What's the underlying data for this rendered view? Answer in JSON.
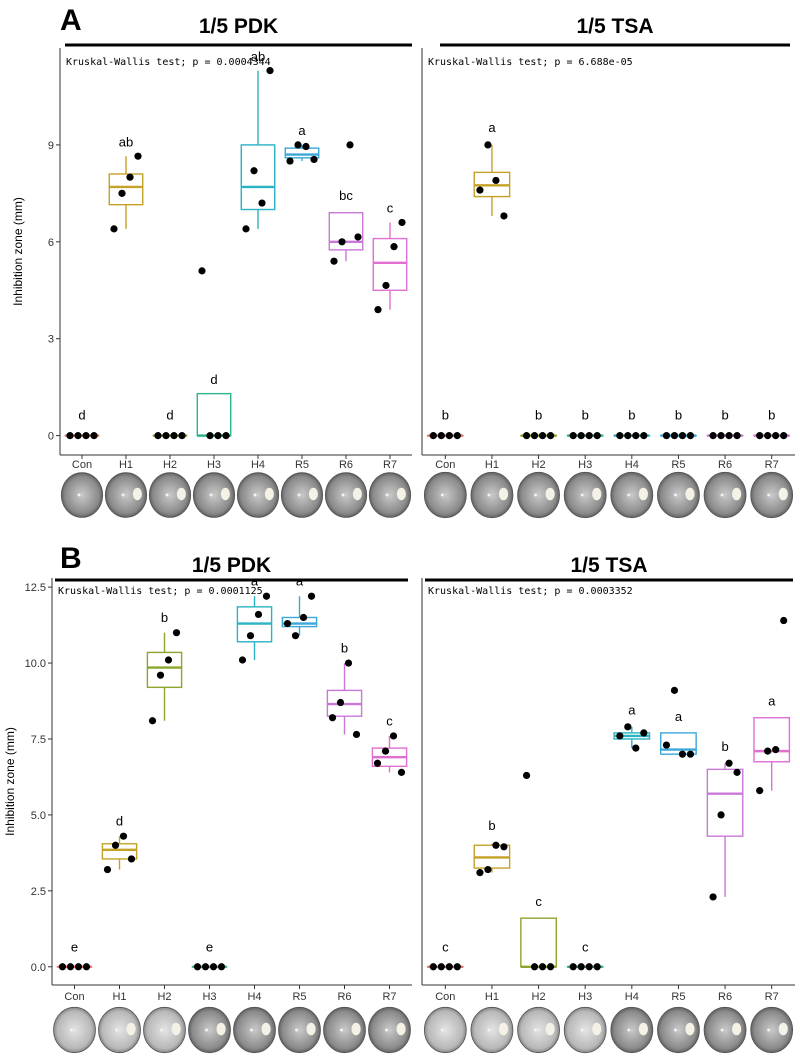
{
  "colors": {
    "Con": "#e8736a",
    "H1": "#c5a227",
    "H2": "#8aa62b",
    "H3": "#2bb58f",
    "H4": "#2ab3c4",
    "R5": "#3aa7d8",
    "R6": "#c978d8",
    "R7": "#e06fd1"
  },
  "chart_data": [
    {
      "type": "box",
      "panel": "A",
      "title": "1/5 PDK",
      "test": "Kruskal-Wallis test; p = 0.0004344",
      "ylabel": "Inhibition zone (mm)",
      "ylim": [
        -0.6,
        12
      ],
      "yticks": [
        0,
        3,
        6,
        9
      ],
      "categories": [
        "Con",
        "H1",
        "H2",
        "H3",
        "H4",
        "R5",
        "R6",
        "R7"
      ],
      "boxes": [
        {
          "q1": 0,
          "med": 0,
          "q3": 0,
          "lo": 0,
          "hi": 0
        },
        {
          "q1": 7.15,
          "med": 7.7,
          "q3": 8.1,
          "lo": 6.4,
          "hi": 8.65
        },
        {
          "q1": 0,
          "med": 0,
          "q3": 0,
          "lo": 0,
          "hi": 0
        },
        {
          "q1": 0,
          "med": 0,
          "q3": 1.3,
          "lo": 0,
          "hi": 1.3
        },
        {
          "q1": 7.0,
          "med": 7.7,
          "q3": 9.0,
          "lo": 6.4,
          "hi": 11.3
        },
        {
          "q1": 8.6,
          "med": 8.7,
          "q3": 8.9,
          "lo": 8.5,
          "hi": 9.0
        },
        {
          "q1": 5.75,
          "med": 6.0,
          "q3": 6.9,
          "lo": 5.4,
          "hi": 6.9
        },
        {
          "q1": 4.5,
          "med": 5.35,
          "q3": 6.1,
          "lo": 3.9,
          "hi": 6.6
        }
      ],
      "points": [
        [
          [
            0,
            0
          ],
          [
            0,
            0
          ],
          [
            0,
            0
          ],
          [
            0,
            0
          ]
        ],
        [
          [
            0,
            6.4
          ],
          [
            0,
            7.5
          ],
          [
            0,
            8.0
          ],
          [
            0,
            8.65
          ]
        ],
        [
          [
            0,
            0
          ],
          [
            0,
            0
          ],
          [
            0,
            0
          ],
          [
            0,
            0
          ]
        ],
        [
          [
            0,
            5.1
          ],
          [
            0,
            0
          ],
          [
            0,
            0
          ],
          [
            0,
            0
          ]
        ],
        [
          [
            0,
            6.4
          ],
          [
            0,
            8.2
          ],
          [
            0,
            7.2
          ],
          [
            0,
            11.3
          ]
        ],
        [
          [
            0,
            8.5
          ],
          [
            0,
            9.0
          ],
          [
            0,
            8.95
          ],
          [
            0,
            8.55
          ]
        ],
        [
          [
            0,
            5.4
          ],
          [
            0,
            6.0
          ],
          [
            0,
            9.0
          ],
          [
            0,
            6.15
          ]
        ],
        [
          [
            0,
            3.9
          ],
          [
            0,
            4.65
          ],
          [
            0,
            5.85
          ],
          [
            0,
            6.6
          ]
        ]
      ],
      "letters": [
        "d",
        "ab",
        "d",
        "d",
        "ab",
        "a",
        "bc",
        "c"
      ],
      "letter_y": [
        0.5,
        8.95,
        0.5,
        1.6,
        11.6,
        9.3,
        7.3,
        6.9
      ]
    },
    {
      "type": "box",
      "panel": "A",
      "title": "1/5 TSA",
      "test": "Kruskal-Wallis test; p = 6.688e-05",
      "ylabel": "",
      "ylim": [
        -0.6,
        12
      ],
      "yticks": [],
      "categories": [
        "Con",
        "H1",
        "H2",
        "H3",
        "H4",
        "R5",
        "R6",
        "R7"
      ],
      "boxes": [
        {
          "q1": 0,
          "med": 0,
          "q3": 0,
          "lo": 0,
          "hi": 0
        },
        {
          "q1": 7.4,
          "med": 7.75,
          "q3": 8.15,
          "lo": 6.8,
          "hi": 9.0
        },
        {
          "q1": 0,
          "med": 0,
          "q3": 0,
          "lo": 0,
          "hi": 0
        },
        {
          "q1": 0,
          "med": 0,
          "q3": 0,
          "lo": 0,
          "hi": 0
        },
        {
          "q1": 0,
          "med": 0,
          "q3": 0,
          "lo": 0,
          "hi": 0
        },
        {
          "q1": 0,
          "med": 0,
          "q3": 0,
          "lo": 0,
          "hi": 0
        },
        {
          "q1": 0,
          "med": 0,
          "q3": 0,
          "lo": 0,
          "hi": 0
        },
        {
          "q1": 0,
          "med": 0,
          "q3": 0,
          "lo": 0,
          "hi": 0
        }
      ],
      "points": [
        [
          [
            0,
            0
          ],
          [
            0,
            0
          ],
          [
            0,
            0
          ],
          [
            0,
            0
          ]
        ],
        [
          [
            0,
            7.6
          ],
          [
            0,
            9.0
          ],
          [
            0,
            7.9
          ],
          [
            0,
            6.8
          ]
        ],
        [
          [
            0,
            0
          ],
          [
            0,
            0
          ],
          [
            0,
            0
          ],
          [
            0,
            0
          ]
        ],
        [
          [
            0,
            0
          ],
          [
            0,
            0
          ],
          [
            0,
            0
          ],
          [
            0,
            0
          ]
        ],
        [
          [
            0,
            0
          ],
          [
            0,
            0
          ],
          [
            0,
            0
          ],
          [
            0,
            0
          ]
        ],
        [
          [
            0,
            0
          ],
          [
            0,
            0
          ],
          [
            0,
            0
          ],
          [
            0,
            0
          ]
        ],
        [
          [
            0,
            0
          ],
          [
            0,
            0
          ],
          [
            0,
            0
          ],
          [
            0,
            0
          ]
        ],
        [
          [
            0,
            0
          ],
          [
            0,
            0
          ],
          [
            0,
            0
          ],
          [
            0,
            0
          ]
        ]
      ],
      "letters": [
        "b",
        "a",
        "b",
        "b",
        "b",
        "b",
        "b",
        "b"
      ],
      "letter_y": [
        0.5,
        9.4,
        0.5,
        0.5,
        0.5,
        0.5,
        0.5,
        0.5
      ]
    },
    {
      "type": "box",
      "panel": "B",
      "title": "1/5 PDK",
      "test": "Kruskal-Wallis test; p = 0.0001125",
      "ylabel": "Inhibition zone (mm)",
      "ylim": [
        -0.6,
        12.8
      ],
      "yticks": [
        0,
        2.5,
        5,
        7.5,
        10,
        12.5
      ],
      "ytick_labels": [
        "0.0",
        "2.5",
        "5.0",
        "7.5",
        "10.0",
        "12.5"
      ],
      "categories": [
        "Con",
        "H1",
        "H2",
        "H3",
        "H4",
        "R5",
        "R6",
        "R7"
      ],
      "boxes": [
        {
          "q1": 0,
          "med": 0,
          "q3": 0,
          "lo": 0,
          "hi": 0
        },
        {
          "q1": 3.55,
          "med": 3.85,
          "q3": 4.05,
          "lo": 3.2,
          "hi": 4.3
        },
        {
          "q1": 9.2,
          "med": 9.85,
          "q3": 10.35,
          "lo": 8.1,
          "hi": 11.0
        },
        {
          "q1": 0,
          "med": 0,
          "q3": 0,
          "lo": 0,
          "hi": 0
        },
        {
          "q1": 10.7,
          "med": 11.3,
          "q3": 11.85,
          "lo": 10.1,
          "hi": 12.2
        },
        {
          "q1": 11.2,
          "med": 11.3,
          "q3": 11.5,
          "lo": 10.9,
          "hi": 12.2
        },
        {
          "q1": 8.25,
          "med": 8.65,
          "q3": 9.1,
          "lo": 7.65,
          "hi": 10.0
        },
        {
          "q1": 6.6,
          "med": 6.9,
          "q3": 7.2,
          "lo": 6.4,
          "hi": 7.6
        }
      ],
      "points": [
        [
          [
            0,
            0
          ],
          [
            0,
            0
          ],
          [
            0,
            0
          ],
          [
            0,
            0
          ]
        ],
        [
          [
            0,
            3.2
          ],
          [
            0,
            4.0
          ],
          [
            0,
            4.3
          ],
          [
            0,
            3.55
          ]
        ],
        [
          [
            0,
            8.1
          ],
          [
            0,
            9.6
          ],
          [
            0,
            10.1
          ],
          [
            0,
            11.0
          ]
        ],
        [
          [
            0,
            0
          ],
          [
            0,
            0
          ],
          [
            0,
            0
          ],
          [
            0,
            0
          ]
        ],
        [
          [
            0,
            10.1
          ],
          [
            0,
            10.9
          ],
          [
            0,
            11.6
          ],
          [
            0,
            12.2
          ]
        ],
        [
          [
            0,
            11.3
          ],
          [
            0,
            10.9
          ],
          [
            0,
            11.5
          ],
          [
            0,
            12.2
          ]
        ],
        [
          [
            0,
            8.2
          ],
          [
            0,
            8.7
          ],
          [
            0,
            10.0
          ],
          [
            0,
            7.65
          ]
        ],
        [
          [
            0,
            6.7
          ],
          [
            0,
            7.1
          ],
          [
            0,
            7.6
          ],
          [
            0,
            6.4
          ]
        ]
      ],
      "letters": [
        "e",
        "d",
        "b",
        "e",
        "a",
        "a",
        "b",
        "c"
      ],
      "letter_y": [
        0.5,
        4.65,
        11.35,
        0.5,
        12.55,
        12.55,
        10.35,
        7.95
      ]
    },
    {
      "type": "box",
      "panel": "B",
      "title": "1/5 TSA",
      "test": "Kruskal-Wallis test; p = 0.0003352",
      "ylabel": "",
      "ylim": [
        -0.6,
        12.8
      ],
      "yticks": [],
      "categories": [
        "Con",
        "H1",
        "H2",
        "H3",
        "H4",
        "R5",
        "R6",
        "R7"
      ],
      "boxes": [
        {
          "q1": 0,
          "med": 0,
          "q3": 0,
          "lo": 0,
          "hi": 0
        },
        {
          "q1": 3.25,
          "med": 3.6,
          "q3": 4.0,
          "lo": 3.1,
          "hi": 4.05
        },
        {
          "q1": 0,
          "med": 0,
          "q3": 1.6,
          "lo": 0,
          "hi": 1.6
        },
        {
          "q1": 0,
          "med": 0,
          "q3": 0,
          "lo": 0,
          "hi": 0
        },
        {
          "q1": 7.5,
          "med": 7.6,
          "q3": 7.7,
          "lo": 7.2,
          "hi": 7.9
        },
        {
          "q1": 7.0,
          "med": 7.15,
          "q3": 7.7,
          "lo": 7.0,
          "hi": 7.7
        },
        {
          "q1": 4.3,
          "med": 5.7,
          "q3": 6.5,
          "lo": 2.3,
          "hi": 6.7
        },
        {
          "q1": 6.75,
          "med": 7.1,
          "q3": 8.2,
          "lo": 5.8,
          "hi": 8.2
        }
      ],
      "points": [
        [
          [
            0,
            0
          ],
          [
            0,
            0
          ],
          [
            0,
            0
          ],
          [
            0,
            0
          ]
        ],
        [
          [
            0,
            3.1
          ],
          [
            0,
            3.2
          ],
          [
            0,
            4.0
          ],
          [
            0,
            3.95
          ]
        ],
        [
          [
            0,
            6.3
          ],
          [
            0,
            0
          ],
          [
            0,
            0
          ],
          [
            0,
            0
          ]
        ],
        [
          [
            0,
            0
          ],
          [
            0,
            0
          ],
          [
            0,
            0
          ],
          [
            0,
            0
          ]
        ],
        [
          [
            0,
            7.6
          ],
          [
            0,
            7.9
          ],
          [
            0,
            7.2
          ],
          [
            0,
            7.7
          ]
        ],
        [
          [
            0,
            7.3
          ],
          [
            0,
            9.1
          ],
          [
            0,
            7.0
          ],
          [
            0,
            7.0
          ]
        ],
        [
          [
            0,
            2.3
          ],
          [
            0,
            5.0
          ],
          [
            0,
            6.7
          ],
          [
            0,
            6.4
          ]
        ],
        [
          [
            0,
            5.8
          ],
          [
            0,
            7.1
          ],
          [
            0,
            7.15
          ],
          [
            0,
            11.4
          ]
        ]
      ],
      "letters": [
        "c",
        "b",
        "c",
        "c",
        "a",
        "a",
        "b",
        "a"
      ],
      "letter_y": [
        0.5,
        4.5,
        2.0,
        0.5,
        8.3,
        8.1,
        7.1,
        8.6
      ]
    }
  ]
}
